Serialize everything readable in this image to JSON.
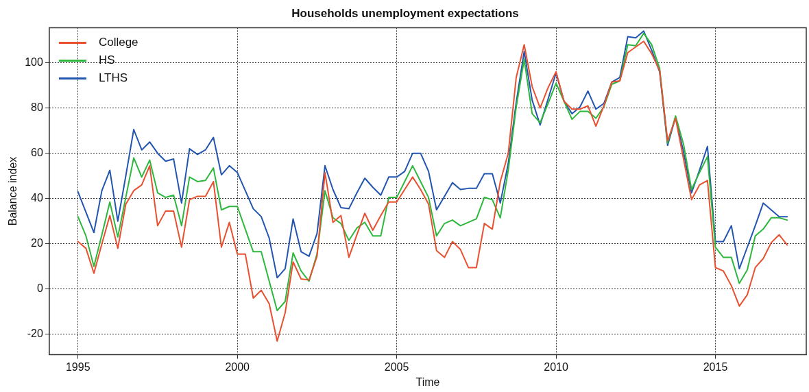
{
  "chart_data": {
    "type": "line",
    "title": "Households unemployment expectations",
    "xlabel": "Time",
    "ylabel": "Balance index",
    "x": [
      1995,
      1995.25,
      1995.5,
      1995.75,
      1996,
      1996.25,
      1996.5,
      1996.75,
      1997,
      1997.25,
      1997.5,
      1997.75,
      1998,
      1998.25,
      1998.5,
      1998.75,
      1999,
      1999.25,
      1999.5,
      1999.75,
      2000,
      2000.25,
      2000.5,
      2000.75,
      2001,
      2001.25,
      2001.5,
      2001.75,
      2002,
      2002.25,
      2002.5,
      2002.75,
      2003,
      2003.25,
      2003.5,
      2003.75,
      2004,
      2004.25,
      2004.5,
      2004.75,
      2005,
      2005.25,
      2005.5,
      2005.75,
      2006,
      2006.25,
      2006.5,
      2006.75,
      2007,
      2007.25,
      2007.5,
      2007.75,
      2008,
      2008.25,
      2008.5,
      2008.75,
      2009,
      2009.25,
      2009.5,
      2009.75,
      2010,
      2010.25,
      2010.5,
      2010.75,
      2011,
      2011.25,
      2011.5,
      2011.75,
      2012,
      2012.25,
      2012.5,
      2012.75,
      2013,
      2013.25,
      2013.5,
      2013.75,
      2014,
      2014.25,
      2014.5,
      2014.75,
      2015,
      2015.25,
      2015.5,
      2015.75,
      2016,
      2016.25,
      2016.5,
      2016.75,
      2017,
      2017.25
    ],
    "series": [
      {
        "name": "College",
        "color": "#e8502f",
        "values": [
          21,
          18,
          7,
          20,
          32.5,
          18,
          37.5,
          43.5,
          46,
          54.5,
          28,
          34.5,
          34.5,
          18.5,
          39.5,
          41,
          41,
          47.5,
          18.5,
          29.5,
          15.5,
          15.5,
          -4,
          -0.5,
          -6.5,
          -23,
          -10.5,
          12,
          4.5,
          4,
          14.5,
          51.5,
          29.5,
          32.5,
          14,
          24,
          33.5,
          26,
          32.5,
          38.5,
          38.5,
          44,
          49.5,
          44,
          37.5,
          17,
          14,
          21,
          17.5,
          9.5,
          9.5,
          29,
          26.5,
          47.5,
          60,
          93.5,
          108,
          89.5,
          80,
          89,
          96,
          83,
          79.5,
          79.5,
          81,
          72,
          81,
          91.5,
          92,
          104.5,
          107,
          109.5,
          104,
          96.5,
          65.5,
          75.5,
          57.5,
          39.5,
          46,
          48,
          9.5,
          8,
          1.5,
          -7.5,
          -2.5,
          9.5,
          13.5,
          20.5,
          24,
          19.5
        ]
      },
      {
        "name": "HS",
        "color": "#2db83d",
        "values": [
          32,
          23.5,
          10,
          24,
          38.5,
          23,
          40.5,
          58,
          49.5,
          57,
          42.5,
          40.5,
          41.5,
          28,
          49.5,
          47.5,
          48,
          53.5,
          35,
          36.5,
          36.5,
          26.5,
          16.5,
          16.5,
          3.5,
          -9.5,
          -5.5,
          16,
          8,
          3.5,
          15.5,
          43.5,
          31.5,
          29,
          21.5,
          27,
          29.5,
          23.5,
          23.5,
          40.5,
          40.5,
          47.5,
          54.5,
          47.5,
          40.5,
          23.5,
          29,
          30.5,
          28,
          29.5,
          31,
          40.5,
          39.5,
          31.5,
          52.5,
          80.5,
          101.5,
          77.5,
          73.5,
          82,
          91,
          83,
          75,
          78.5,
          78.5,
          75.5,
          80.5,
          90.5,
          92,
          108,
          107.5,
          113,
          108,
          97.5,
          64.5,
          76.5,
          64,
          44,
          51.5,
          58.5,
          18.5,
          14,
          14,
          2.5,
          8.5,
          23.5,
          26.5,
          31.5,
          31.5,
          30.5
        ]
      },
      {
        "name": "LTHS",
        "color": "#2255b0",
        "values": [
          43,
          34,
          25,
          43.5,
          52.5,
          30,
          50,
          70.5,
          61.5,
          65,
          60,
          56.5,
          57.5,
          38,
          62,
          59.5,
          61.5,
          67,
          50.5,
          54.5,
          51.5,
          43.5,
          35.5,
          32,
          22.5,
          5,
          9,
          31,
          16.5,
          14.5,
          24.5,
          54.5,
          44,
          36,
          35.5,
          42.5,
          49,
          45,
          41.5,
          49.5,
          49.5,
          52,
          60,
          60,
          52,
          35,
          41,
          47,
          44,
          44.5,
          44.5,
          51,
          51,
          38,
          55.5,
          82.5,
          105,
          83.5,
          72.5,
          84,
          95.5,
          83,
          77.5,
          80.5,
          87.5,
          79.5,
          82,
          91.5,
          93.5,
          111.5,
          111,
          114,
          105.5,
          96,
          63.5,
          76,
          60.5,
          42.5,
          52.5,
          63,
          21,
          21,
          28,
          9,
          18.5,
          28,
          38,
          35,
          32,
          32
        ]
      }
    ],
    "xlim": [
      1994.1,
      2017.85
    ],
    "ylim": [
      -29,
      115.5
    ],
    "xticks": [
      1995,
      2000,
      2005,
      2010,
      2015
    ],
    "yticks": [
      -20,
      0,
      20,
      40,
      60,
      80,
      100
    ],
    "grid": true,
    "legend": "top left",
    "line_style": "solid",
    "marker": "none"
  }
}
